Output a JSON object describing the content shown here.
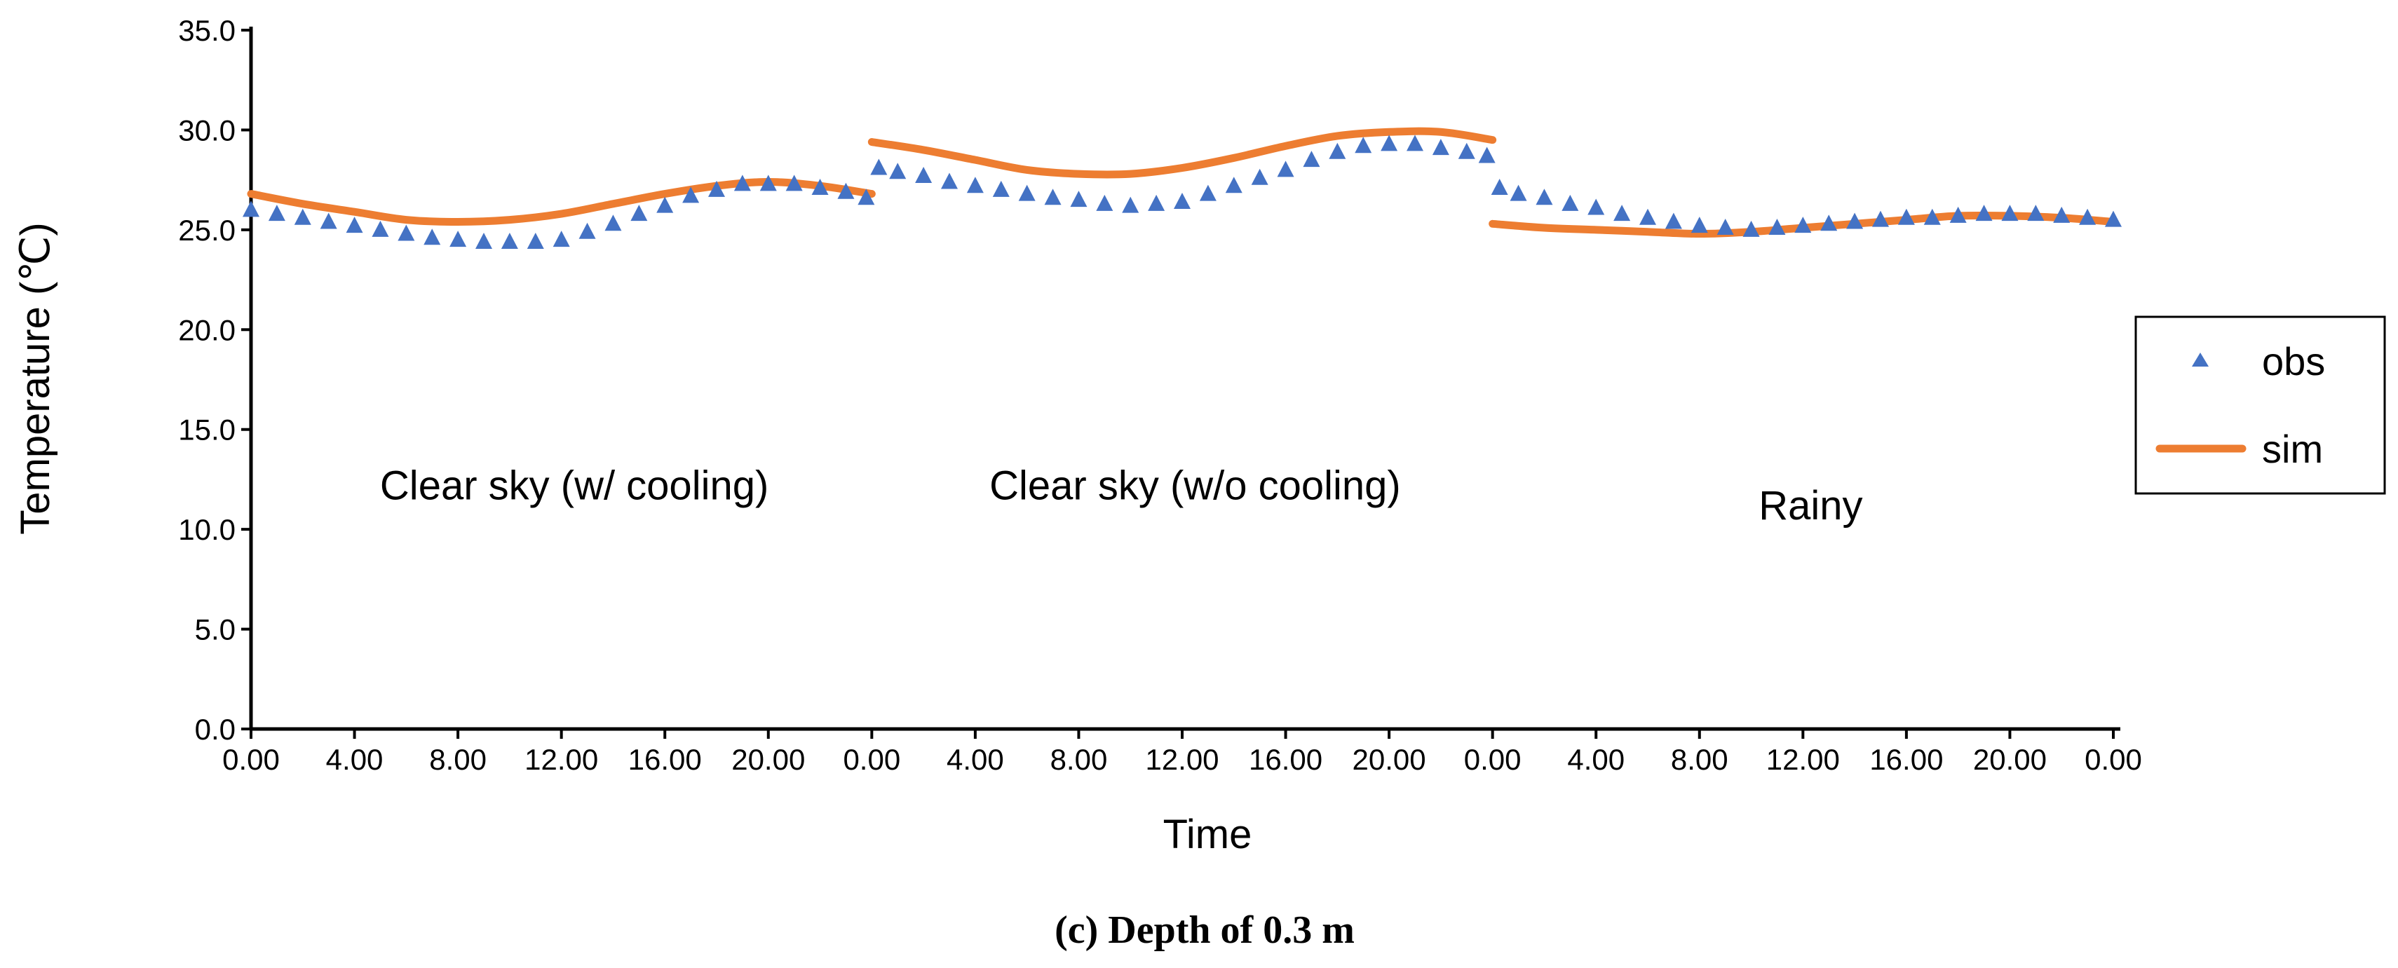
{
  "chart_data": {
    "type": "line",
    "title": "",
    "xlabel": "Time",
    "ylabel": "Temperature (℃)",
    "ylim": [
      0,
      35
    ],
    "yticks": [
      "0.0",
      "5.0",
      "10.0",
      "15.0",
      "20.0",
      "25.0",
      "30.0",
      "35.0"
    ],
    "x_tick_labels": [
      "0.00",
      "4.00",
      "8.00",
      "12.00",
      "16.00",
      "20.00",
      "0.00",
      "4.00",
      "8.00",
      "12.00",
      "16.00",
      "20.00",
      "0.00",
      "4.00",
      "8.00",
      "12.00",
      "16.00",
      "20.00",
      "0.00"
    ],
    "x_hours_range": [
      0,
      72
    ],
    "legend": {
      "position": "right",
      "items": [
        {
          "name": "obs",
          "marker": "triangle",
          "color": "#4472C4"
        },
        {
          "name": "sim",
          "marker": "line",
          "color": "#ED7D31"
        }
      ]
    },
    "annotations": [
      {
        "text": "Clear sky (w/ cooling)",
        "x_hours": 12.5,
        "y": 11.5
      },
      {
        "text": "Clear sky (w/o cooling)",
        "x_hours": 36.5,
        "y": 11.5
      },
      {
        "text": "Rainy",
        "x_hours": 60.3,
        "y": 10.5
      }
    ],
    "caption": "(c) Depth of 0.3 m",
    "series": [
      {
        "name": "obs",
        "type": "scatter",
        "color": "#4472C4",
        "segments": [
          {
            "x": [
              0,
              1,
              2,
              3,
              4,
              5,
              6,
              7,
              8,
              9,
              10,
              11,
              12,
              13,
              14,
              15,
              16,
              17,
              18,
              19,
              20,
              21,
              22,
              23,
              24
            ],
            "y": [
              26.0,
              25.8,
              25.6,
              25.4,
              25.2,
              25.0,
              24.8,
              24.6,
              24.5,
              24.4,
              24.4,
              24.4,
              24.5,
              24.9,
              25.3,
              25.8,
              26.2,
              26.7,
              27.0,
              27.3,
              27.3,
              27.3,
              27.1,
              26.9,
              26.6
            ]
          },
          {
            "x": [
              24,
              25,
              26,
              27,
              28,
              29,
              30,
              31,
              32,
              33,
              34,
              35,
              36,
              37,
              38,
              39,
              40,
              41,
              42,
              43,
              44,
              45,
              46,
              47,
              48
            ],
            "y": [
              28.1,
              27.9,
              27.7,
              27.4,
              27.2,
              27.0,
              26.8,
              26.6,
              26.5,
              26.3,
              26.2,
              26.3,
              26.4,
              26.8,
              27.2,
              27.6,
              28.0,
              28.5,
              28.9,
              29.2,
              29.3,
              29.3,
              29.1,
              28.9,
              28.7
            ]
          },
          {
            "x": [
              48,
              49,
              50,
              51,
              52,
              53,
              54,
              55,
              56,
              57,
              58,
              59,
              60,
              61,
              62,
              63,
              64,
              65,
              66,
              67,
              68,
              69,
              70,
              71,
              72
            ],
            "y": [
              27.1,
              26.8,
              26.6,
              26.3,
              26.1,
              25.8,
              25.6,
              25.4,
              25.2,
              25.1,
              25.0,
              25.1,
              25.2,
              25.3,
              25.4,
              25.5,
              25.6,
              25.6,
              25.7,
              25.8,
              25.8,
              25.8,
              25.7,
              25.6,
              25.5
            ]
          }
        ]
      },
      {
        "name": "sim",
        "type": "line",
        "color": "#ED7D31",
        "segments": [
          {
            "x": [
              0,
              2,
              4,
              6,
              8,
              10,
              12,
              14,
              16,
              18,
              20,
              22,
              24
            ],
            "y": [
              26.8,
              26.3,
              25.9,
              25.5,
              25.4,
              25.5,
              25.8,
              26.3,
              26.8,
              27.2,
              27.4,
              27.2,
              26.8
            ]
          },
          {
            "x": [
              24,
              26,
              28,
              30,
              32,
              34,
              36,
              38,
              40,
              42,
              44,
              46,
              48
            ],
            "y": [
              29.4,
              29.0,
              28.5,
              28.0,
              27.8,
              27.8,
              28.1,
              28.6,
              29.2,
              29.7,
              29.9,
              29.9,
              29.5
            ]
          },
          {
            "x": [
              48,
              50,
              52,
              54,
              56,
              58,
              60,
              62,
              64,
              66,
              68,
              70,
              72
            ],
            "y": [
              25.3,
              25.1,
              25.0,
              24.9,
              24.8,
              24.9,
              25.1,
              25.3,
              25.5,
              25.7,
              25.7,
              25.6,
              25.4
            ]
          }
        ]
      }
    ]
  }
}
